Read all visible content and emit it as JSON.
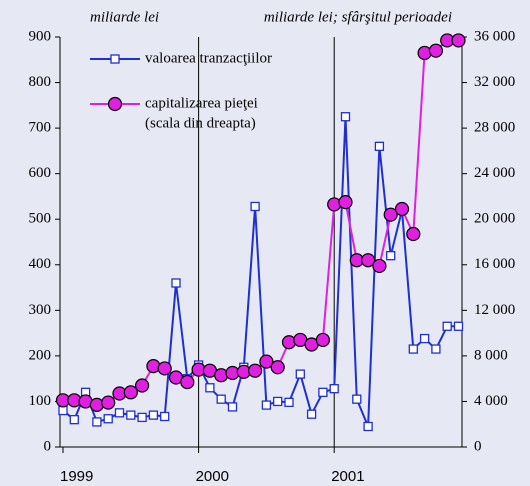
{
  "chart_data": {
    "type": "line",
    "y_label": "miliarde lei",
    "y2_label": "miliarde lei; sfârşitul perioadei",
    "categories": [
      "1999",
      null,
      null,
      null,
      null,
      null,
      null,
      null,
      null,
      null,
      null,
      null,
      "2000",
      null,
      null,
      null,
      null,
      null,
      null,
      null,
      null,
      null,
      null,
      null,
      "2001",
      null,
      null,
      null,
      null,
      null,
      null,
      null,
      null,
      null,
      null,
      null
    ],
    "series": [
      {
        "name": "valoarea tranzacţiilor",
        "color": "#1f2fd0",
        "marker": "square",
        "values": [
          80,
          60,
          120,
          55,
          62,
          75,
          70,
          65,
          70,
          67,
          360,
          150,
          180,
          130,
          105,
          88,
          175,
          528,
          92,
          100,
          98,
          160,
          72,
          120,
          128,
          725,
          105,
          45,
          660,
          420,
          520,
          215,
          238,
          215,
          265,
          265
        ]
      },
      {
        "name": "capitalizarea pieţei",
        "color": "#e020e0",
        "marker": "circle",
        "axis": "y2",
        "values": [
          4100,
          4100,
          4000,
          3700,
          3900,
          4700,
          4800,
          5400,
          7100,
          6900,
          6100,
          5700,
          6800,
          6700,
          6300,
          6500,
          6600,
          6700,
          7500,
          7000,
          9200,
          9400,
          9000,
          9400,
          21300,
          21500,
          16400,
          16400,
          15900,
          20400,
          20900,
          18700,
          34600,
          34800,
          35700,
          35700
        ]
      }
    ],
    "legend_note": "(scala din dreapta)",
    "legend": "upper left",
    "ylim": [
      0,
      900
    ],
    "yticks": [
      0,
      100,
      200,
      300,
      400,
      500,
      600,
      700,
      800,
      900
    ],
    "y2lim": [
      0,
      36000
    ],
    "y2ticks": [
      0,
      {
        "value": 4000,
        "label": "4 000"
      },
      {
        "value": 8000,
        "label": "8 000"
      },
      {
        "value": 12000,
        "label": "12 000"
      },
      {
        "value": 16000,
        "label": "16 000"
      },
      {
        "value": 20000,
        "label": "20 000"
      },
      {
        "value": 24000,
        "label": "24 000"
      },
      {
        "value": 28000,
        "label": "28 000"
      },
      {
        "value": 32000,
        "label": "32 000"
      },
      {
        "value": 36000,
        "label": "36 000"
      }
    ]
  }
}
